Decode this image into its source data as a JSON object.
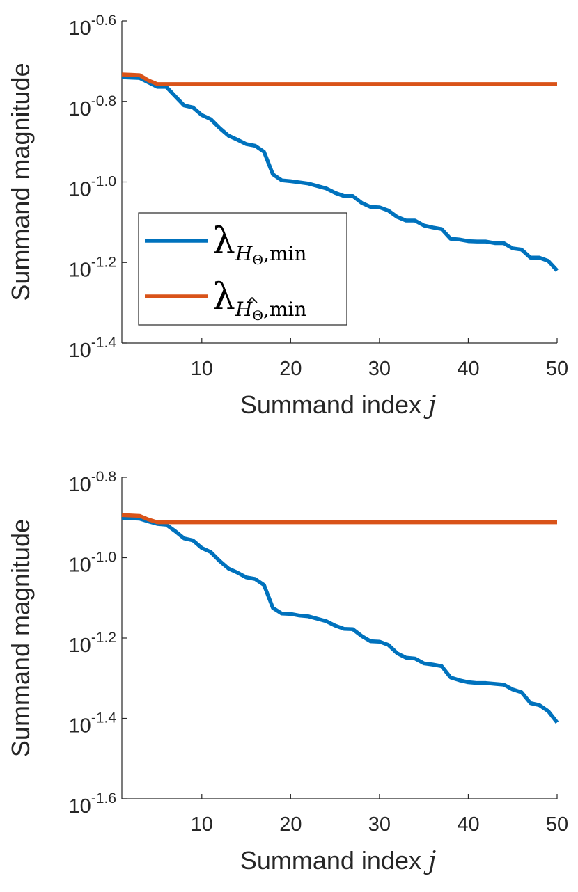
{
  "chart_data": [
    {
      "type": "line",
      "xlabel": "Summand index",
      "xlabel_var": "j",
      "ylabel": "Summand magnitude",
      "y_scale": "log10",
      "xlim": [
        1,
        50
      ],
      "ylim": [
        -1.4,
        -0.6
      ],
      "x_ticks": [
        10,
        20,
        30,
        40,
        50
      ],
      "y_ticks": [
        {
          "base": "10",
          "exp": "-0.6",
          "value": -0.6
        },
        {
          "base": "10",
          "exp": "-0.8",
          "value": -0.8
        },
        {
          "base": "10",
          "exp": "-1.0",
          "value": -1.0
        },
        {
          "base": "10",
          "exp": "-1.2",
          "value": -1.2
        },
        {
          "base": "10",
          "exp": "-1.4",
          "value": -1.4
        }
      ],
      "legend": {
        "placement": "center-left",
        "entries": [
          {
            "symbol": "λ",
            "sub": "H",
            "sub2": "Θ",
            "suffix": ",min",
            "hat": false
          },
          {
            "symbol": "λ",
            "sub": "H",
            "sub2": "Θ",
            "suffix": ",min",
            "hat": true
          }
        ]
      },
      "series": [
        {
          "color": "#0072BD",
          "x": [
            1,
            2,
            3,
            4,
            5,
            6,
            7,
            8,
            9,
            10,
            11,
            12,
            13,
            14,
            15,
            16,
            17,
            18,
            19,
            20,
            21,
            22,
            23,
            24,
            25,
            26,
            27,
            28,
            29,
            30,
            31,
            32,
            33,
            34,
            35,
            36,
            37,
            38,
            39,
            40,
            41,
            42,
            43,
            44,
            45,
            46,
            47,
            48,
            49,
            50
          ],
          "y": [
            -0.74,
            -0.741,
            -0.742,
            -0.753,
            -0.764,
            -0.764,
            -0.787,
            -0.81,
            -0.815,
            -0.834,
            -0.844,
            -0.866,
            -0.885,
            -0.895,
            -0.906,
            -0.91,
            -0.925,
            -0.981,
            -0.996,
            -0.998,
            -1.001,
            -1.004,
            -1.01,
            -1.016,
            -1.027,
            -1.035,
            -1.035,
            -1.052,
            -1.062,
            -1.063,
            -1.071,
            -1.087,
            -1.096,
            -1.096,
            -1.108,
            -1.113,
            -1.117,
            -1.141,
            -1.143,
            -1.147,
            -1.148,
            -1.148,
            -1.152,
            -1.152,
            -1.165,
            -1.168,
            -1.188,
            -1.188,
            -1.196,
            -1.22
          ]
        },
        {
          "color": "#D95319",
          "x": [
            1,
            2,
            3,
            4,
            5,
            6,
            7,
            8,
            9,
            10,
            11,
            12,
            13,
            14,
            15,
            16,
            17,
            18,
            19,
            20,
            21,
            22,
            23,
            24,
            25,
            26,
            27,
            28,
            29,
            30,
            31,
            32,
            33,
            34,
            35,
            36,
            37,
            38,
            39,
            40,
            41,
            42,
            43,
            44,
            45,
            46,
            47,
            48,
            49,
            50
          ],
          "y": [
            -0.733,
            -0.734,
            -0.735,
            -0.748,
            -0.757,
            -0.757,
            -0.757,
            -0.757,
            -0.757,
            -0.757,
            -0.757,
            -0.757,
            -0.757,
            -0.757,
            -0.757,
            -0.757,
            -0.757,
            -0.757,
            -0.757,
            -0.757,
            -0.757,
            -0.757,
            -0.757,
            -0.757,
            -0.757,
            -0.757,
            -0.757,
            -0.757,
            -0.757,
            -0.757,
            -0.757,
            -0.757,
            -0.757,
            -0.757,
            -0.757,
            -0.757,
            -0.757,
            -0.757,
            -0.757,
            -0.757,
            -0.757,
            -0.757,
            -0.757,
            -0.757,
            -0.757,
            -0.757,
            -0.757,
            -0.757,
            -0.757,
            -0.757
          ]
        }
      ]
    },
    {
      "type": "line",
      "xlabel": "Summand index",
      "xlabel_var": "j",
      "ylabel": "Summand magnitude",
      "y_scale": "log10",
      "xlim": [
        1,
        50
      ],
      "ylim": [
        -1.6,
        -0.8
      ],
      "x_ticks": [
        10,
        20,
        30,
        40,
        50
      ],
      "y_ticks": [
        {
          "base": "10",
          "exp": "-0.8",
          "value": -0.8
        },
        {
          "base": "10",
          "exp": "-1.0",
          "value": -1.0
        },
        {
          "base": "10",
          "exp": "-1.2",
          "value": -1.2
        },
        {
          "base": "10",
          "exp": "-1.4",
          "value": -1.4
        },
        {
          "base": "10",
          "exp": "-1.6",
          "value": -1.6
        }
      ],
      "series": [
        {
          "color": "#0072BD",
          "x": [
            1,
            2,
            3,
            4,
            5,
            6,
            7,
            8,
            9,
            10,
            11,
            12,
            13,
            14,
            15,
            16,
            17,
            18,
            19,
            20,
            21,
            22,
            23,
            24,
            25,
            26,
            27,
            28,
            29,
            30,
            31,
            32,
            33,
            34,
            35,
            36,
            37,
            38,
            39,
            40,
            41,
            42,
            43,
            44,
            45,
            46,
            47,
            48,
            49,
            50
          ],
          "y": [
            -0.901,
            -0.902,
            -0.903,
            -0.91,
            -0.916,
            -0.918,
            -0.934,
            -0.952,
            -0.957,
            -0.976,
            -0.986,
            -1.008,
            -1.027,
            -1.037,
            -1.049,
            -1.053,
            -1.068,
            -1.125,
            -1.139,
            -1.14,
            -1.144,
            -1.146,
            -1.152,
            -1.158,
            -1.169,
            -1.177,
            -1.178,
            -1.195,
            -1.208,
            -1.209,
            -1.217,
            -1.238,
            -1.249,
            -1.251,
            -1.263,
            -1.266,
            -1.27,
            -1.298,
            -1.305,
            -1.31,
            -1.312,
            -1.312,
            -1.314,
            -1.316,
            -1.328,
            -1.335,
            -1.362,
            -1.367,
            -1.382,
            -1.41
          ]
        },
        {
          "color": "#D95319",
          "x": [
            1,
            2,
            3,
            4,
            5,
            6,
            7,
            8,
            9,
            10,
            11,
            12,
            13,
            14,
            15,
            16,
            17,
            18,
            19,
            20,
            21,
            22,
            23,
            24,
            25,
            26,
            27,
            28,
            29,
            30,
            31,
            32,
            33,
            34,
            35,
            36,
            37,
            38,
            39,
            40,
            41,
            42,
            43,
            44,
            45,
            46,
            47,
            48,
            49,
            50
          ],
          "y": [
            -0.894,
            -0.895,
            -0.896,
            -0.905,
            -0.912,
            -0.912,
            -0.912,
            -0.912,
            -0.912,
            -0.912,
            -0.912,
            -0.912,
            -0.912,
            -0.912,
            -0.912,
            -0.912,
            -0.912,
            -0.912,
            -0.912,
            -0.912,
            -0.912,
            -0.912,
            -0.912,
            -0.912,
            -0.912,
            -0.912,
            -0.912,
            -0.912,
            -0.912,
            -0.912,
            -0.912,
            -0.912,
            -0.912,
            -0.912,
            -0.912,
            -0.912,
            -0.912,
            -0.912,
            -0.912,
            -0.912,
            -0.912,
            -0.912,
            -0.912,
            -0.912,
            -0.912,
            -0.912,
            -0.912,
            -0.912,
            -0.912,
            -0.912
          ]
        }
      ]
    }
  ]
}
